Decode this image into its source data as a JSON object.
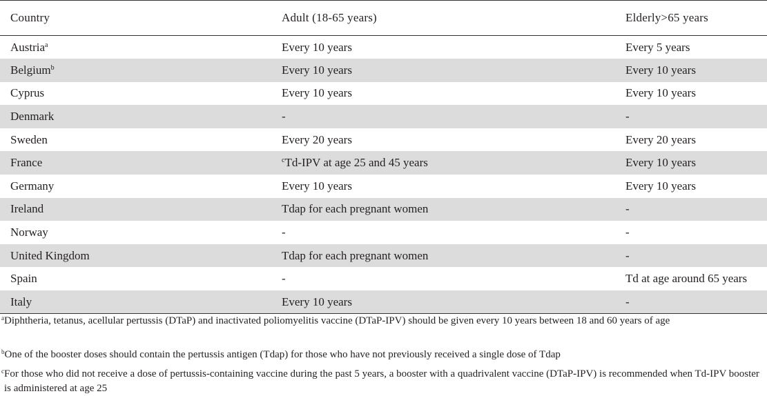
{
  "table": {
    "headers": [
      "Country",
      "Adult (18-65 years)",
      "Elderly>65 years"
    ],
    "rows": [
      {
        "country": "Austria",
        "mark": "a",
        "adult_mark": "",
        "adult": "Every 10 years",
        "elderly": "Every 5 years"
      },
      {
        "country": "Belgium",
        "mark": "b",
        "adult_mark": "",
        "adult": "Every 10 years",
        "elderly": "Every 10 years"
      },
      {
        "country": "Cyprus",
        "mark": "",
        "adult_mark": "",
        "adult": "Every 10 years",
        "elderly": "Every 10 years"
      },
      {
        "country": "Denmark",
        "mark": "",
        "adult_mark": "",
        "adult": "-",
        "elderly": "-"
      },
      {
        "country": "Sweden",
        "mark": "",
        "adult_mark": "",
        "adult": "Every 20 years",
        "elderly": "Every 20 years"
      },
      {
        "country": "France",
        "mark": "",
        "adult_mark": "c",
        "adult": "Td-IPV at age 25 and 45 years",
        "elderly": "Every 10 years"
      },
      {
        "country": "Germany",
        "mark": "",
        "adult_mark": "",
        "adult": "Every 10 years",
        "elderly": "Every 10 years"
      },
      {
        "country": "Ireland",
        "mark": "",
        "adult_mark": "",
        "adult": "Tdap for each pregnant women",
        "elderly": "-"
      },
      {
        "country": "Norway",
        "mark": "",
        "adult_mark": "",
        "adult": "-",
        "elderly": "-"
      },
      {
        "country": "United Kingdom",
        "mark": "",
        "adult_mark": "",
        "adult": "Tdap for each pregnant women",
        "elderly": "-"
      },
      {
        "country": "Spain",
        "mark": "",
        "adult_mark": "",
        "adult": "-",
        "elderly": "Td at age around 65 years"
      },
      {
        "country": "Italy",
        "mark": "",
        "adult_mark": "",
        "adult": "Every 10 years",
        "elderly": "-"
      }
    ]
  },
  "footnotes": [
    {
      "mark": "a",
      "text": "Diphtheria, tetanus, acellular pertussis (DTaP) and inactivated poliomyelitis vaccine (DTaP-IPV) should be given every 10 years between 18 and 60 years of age"
    },
    {
      "mark": "b",
      "text": "One of the booster doses should contain the pertussis antigen (Tdap) for those who have not previously received a single dose of Tdap"
    },
    {
      "mark": "c",
      "text": "For those who did not receive a dose of pertussis-containing vaccine during the past 5 years, a booster with a quadrivalent vaccine (DTaP-IPV) is recommended when Td-IPV booster is administered at age 25"
    }
  ]
}
